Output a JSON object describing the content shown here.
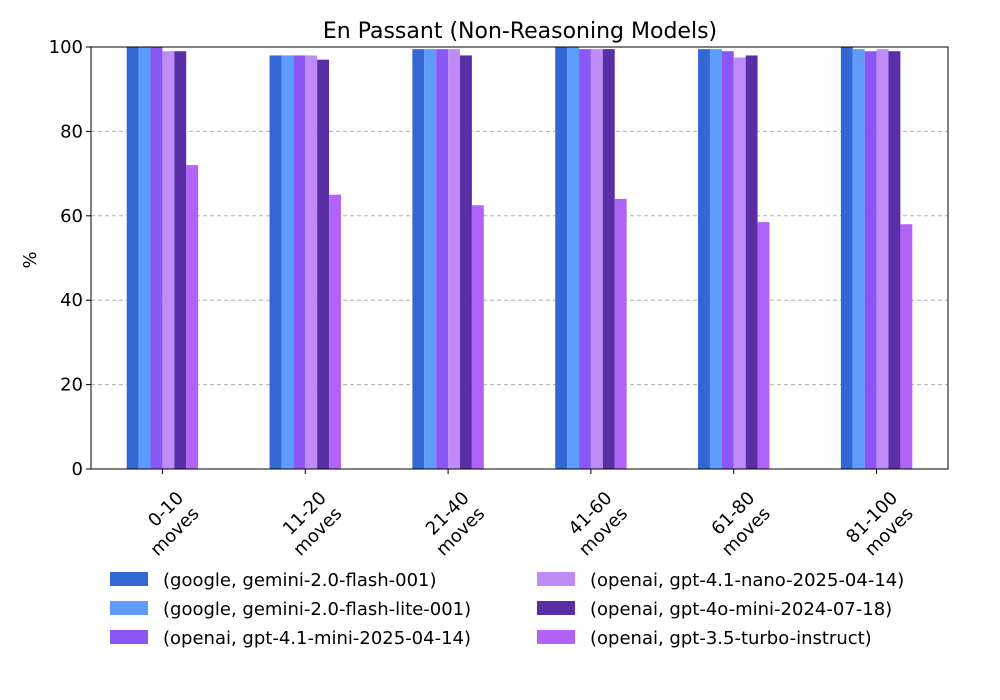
{
  "chart_data": {
    "type": "bar",
    "title": "En Passant (Non-Reasoning Models)",
    "xlabel": "",
    "ylabel": "%",
    "ylim": [
      0,
      100
    ],
    "yticks": [
      0,
      20,
      40,
      60,
      80,
      100
    ],
    "grid": true,
    "legend_position": "bottom",
    "categories": [
      [
        "0-10",
        "moves"
      ],
      [
        "11-20",
        "moves"
      ],
      [
        "21-40",
        "moves"
      ],
      [
        "41-60",
        "moves"
      ],
      [
        "61-80",
        "moves"
      ],
      [
        "81-100",
        "moves"
      ]
    ],
    "series": [
      {
        "name": "(google, gemini-2.0-flash-001)",
        "color": "#3367d6",
        "values": [
          100,
          98,
          99.5,
          100,
          99.5,
          100
        ]
      },
      {
        "name": "(google, gemini-2.0-flash-lite-001)",
        "color": "#5d9cfb",
        "values": [
          100,
          98,
          99.5,
          100,
          99.5,
          99.5
        ]
      },
      {
        "name": "(openai, gpt-4.1-mini-2025-04-14)",
        "color": "#8a57f6",
        "values": [
          100,
          98,
          99.5,
          99.5,
          99,
          99
        ]
      },
      {
        "name": "(openai, gpt-4.1-nano-2025-04-14)",
        "color": "#bf8bf8",
        "values": [
          99,
          98,
          99.5,
          99.5,
          97.5,
          99.5
        ]
      },
      {
        "name": "(openai, gpt-4o-mini-2024-07-18)",
        "color": "#5a2ea6",
        "values": [
          99,
          97,
          98,
          99.5,
          98,
          99
        ]
      },
      {
        "name": "(openai, gpt-3.5-turbo-instruct)",
        "color": "#b063f6",
        "values": [
          72,
          65,
          62.5,
          64,
          58.5,
          58
        ]
      }
    ]
  }
}
